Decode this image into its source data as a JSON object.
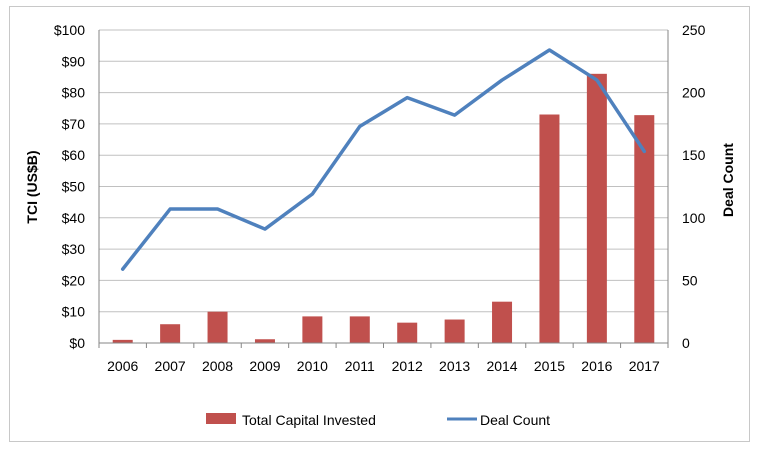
{
  "chart_data": {
    "type": "bar+line",
    "title": "",
    "categories": [
      "2006",
      "2007",
      "2008",
      "2009",
      "2010",
      "2011",
      "2012",
      "2013",
      "2014",
      "2015",
      "2016",
      "2017"
    ],
    "series": [
      {
        "name": "Total Capital Invested",
        "type": "bar",
        "axis": "left",
        "color": "#c0504d",
        "values": [
          1,
          6,
          10,
          1.2,
          8.5,
          8.5,
          6.5,
          7.5,
          13.2,
          73,
          86,
          72.8
        ]
      },
      {
        "name": "Deal Count",
        "type": "line",
        "axis": "right",
        "color": "#4f81bd",
        "values": [
          59,
          107,
          107,
          91,
          119,
          173,
          196,
          182,
          210,
          234,
          210,
          153
        ]
      }
    ],
    "y_left": {
      "label": "TCI (US$B)",
      "min": 0,
      "max": 100,
      "step": 10,
      "tick_labels": [
        "$0",
        "$10",
        "$20",
        "$30",
        "$40",
        "$50",
        "$60",
        "$70",
        "$80",
        "$90",
        "$100"
      ]
    },
    "y_right": {
      "label": "Deal Count",
      "min": 0,
      "max": 250,
      "step": 50,
      "tick_labels": [
        "0",
        "50",
        "100",
        "150",
        "200",
        "250"
      ]
    },
    "grid": true,
    "legend": {
      "placement": "bottom",
      "entries": [
        "Total Capital Invested",
        "Deal Count"
      ]
    }
  }
}
